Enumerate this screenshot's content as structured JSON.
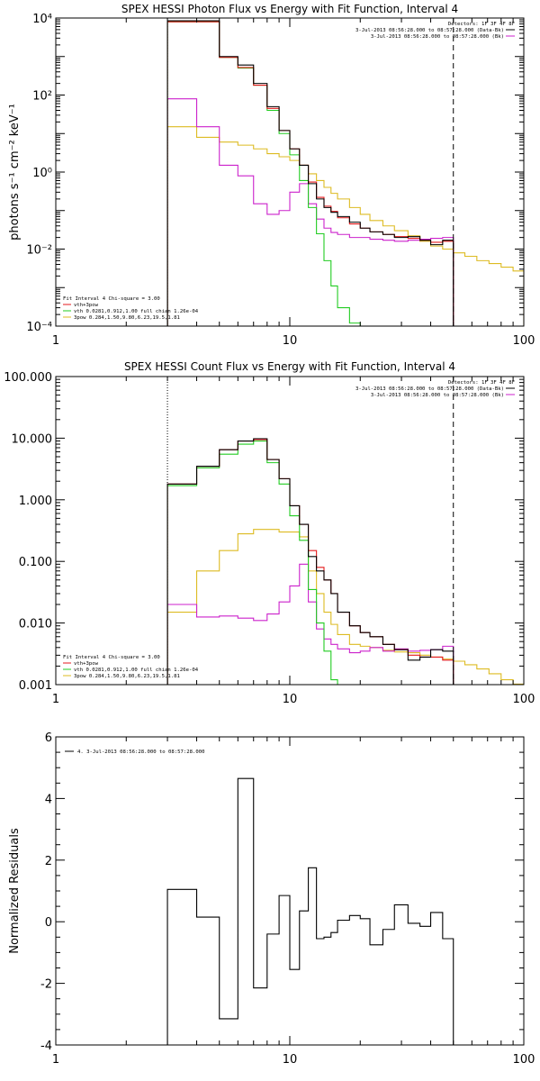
{
  "colors": {
    "black": "#000000",
    "red": "#e41a1c",
    "green": "#22cc22",
    "magenta": "#cc22cc",
    "yellow": "#ddbb22"
  },
  "chart_data": [
    {
      "type": "line",
      "title": "SPEX HESSI Photon Flux vs Energy with Fit Function, Interval 4",
      "xlabel": "",
      "ylabel": "photons s⁻¹ cm⁻² keV⁻¹",
      "xscale": "log",
      "yscale": "log",
      "xlim": [
        1,
        100
      ],
      "ylim": [
        0.0001,
        10000
      ],
      "x_ticks": [
        1,
        10,
        100
      ],
      "x_tick_labels": [
        "1",
        "10",
        "100"
      ],
      "y_ticks": [
        0.0001,
        0.01,
        1,
        100,
        10000
      ],
      "y_tick_labels": [
        "10⁻⁴",
        "10⁻²",
        "10⁰",
        "10²",
        "10⁴"
      ],
      "legend_top_right": [
        "Detectors: 1F 3F 4F 8F",
        "3-Jul-2013 08:56:28.000 to 08:57:28.000 (Data-Bk)",
        "3-Jul-2013 08:56:28.000 to 08:57:28.000 (Bk)"
      ],
      "legend_bottom_left": [
        "Fit Interval 4   Chi-square = 3.00",
        "vth+3pow",
        "vth 0.0281,0.912,1.00  full chian 1.26e-04",
        "3pow 0.284,1.50,9.80,6.23,19.5,1.81"
      ],
      "vlines": [
        {
          "x": 3,
          "style": "dotted"
        },
        {
          "x": 50,
          "style": "dashed"
        }
      ],
      "edges": [
        3.0,
        4.0,
        5.0,
        6.0,
        7.0,
        8.0,
        9.0,
        10.0,
        11.0,
        12.0,
        13.0,
        14.0,
        15.0,
        16.0,
        18.0,
        20.0,
        22.0,
        25.0,
        28.0,
        32.0,
        36.0,
        40.0,
        45.0,
        50.0,
        56.0,
        63.0,
        71.0,
        80.0,
        90.0,
        100.0
      ],
      "series": [
        {
          "name": "Data-Bk",
          "color": "black",
          "values": [
            8500,
            8500,
            1000,
            600,
            200,
            50,
            12,
            4,
            1.5,
            0.5,
            0.2,
            0.12,
            0.09,
            0.07,
            0.05,
            0.035,
            0.028,
            0.024,
            0.02,
            0.021,
            0.017,
            0.013,
            0.017
          ]
        },
        {
          "name": "vth+3pow",
          "color": "red",
          "values": [
            8000,
            8000,
            950,
            520,
            180,
            45,
            12,
            4,
            1.5,
            0.55,
            0.22,
            0.13,
            0.095,
            0.065,
            0.045,
            0.035,
            0.028,
            0.024,
            0.021,
            0.019,
            0.017,
            0.015,
            0.016
          ]
        },
        {
          "name": "vth",
          "color": "green",
          "values": [
            8000,
            8000,
            950,
            500,
            180,
            40,
            10,
            2.8,
            0.6,
            0.12,
            0.025,
            0.005,
            0.0011,
            0.0003,
            0.00012,
            9e-05
          ]
        },
        {
          "name": "Bk",
          "color": "magenta",
          "values": [
            80,
            15,
            1.5,
            0.8,
            0.15,
            0.08,
            0.1,
            0.3,
            0.5,
            0.15,
            0.06,
            0.035,
            0.027,
            0.024,
            0.02,
            0.02,
            0.018,
            0.017,
            0.016,
            0.017,
            0.018,
            0.019,
            0.02
          ]
        },
        {
          "name": "3pow",
          "color": "yellow",
          "values": [
            15,
            8,
            6,
            5,
            4,
            3,
            2.5,
            2,
            1.5,
            0.9,
            0.6,
            0.4,
            0.28,
            0.2,
            0.12,
            0.08,
            0.055,
            0.04,
            0.03,
            0.022,
            0.016,
            0.012,
            0.01,
            0.008,
            0.0065,
            0.005,
            0.0042,
            0.0034,
            0.0027
          ]
        }
      ]
    },
    {
      "type": "line",
      "title": "SPEX HESSI Count Flux vs Energy with Fit Function, Interval 4",
      "xlabel": "",
      "ylabel": "",
      "xscale": "log",
      "yscale": "log",
      "xlim": [
        1,
        100
      ],
      "ylim": [
        0.001,
        100
      ],
      "x_ticks": [
        1,
        10,
        100
      ],
      "x_tick_labels": [
        "1",
        "10",
        "100"
      ],
      "y_ticks": [
        0.001,
        0.01,
        0.1,
        1,
        10,
        100
      ],
      "y_tick_labels": [
        "0.001",
        "0.010",
        "0.100",
        "1.000",
        "10.000",
        "100.000"
      ],
      "legend_top_right": [
        "Detectors: 1F 3F 4F 8F",
        "3-Jul-2013 08:56:28.000 to 08:57:28.000 (Data-Bk)",
        "3-Jul-2013 08:56:28.000 to 08:57:28.000 (Bk)"
      ],
      "legend_bottom_left": [
        "Fit Interval 4   Chi-square = 3.00",
        "vth+3pow",
        "vth 0.0281,0.912,1.00  full chian 1.26e-04",
        "3pow 0.284,1.50,9.80,6.23,19.5,1.81"
      ],
      "vlines": [
        {
          "x": 3,
          "style": "dotted"
        },
        {
          "x": 50,
          "style": "dashed"
        }
      ],
      "edges": [
        3.0,
        4.0,
        5.0,
        6.0,
        7.0,
        8.0,
        9.0,
        10.0,
        11.0,
        12.0,
        13.0,
        14.0,
        15.0,
        16.0,
        18.0,
        20.0,
        22.0,
        25.0,
        28.0,
        32.0,
        36.0,
        40.0,
        45.0,
        50.0,
        56.0,
        63.0,
        71.0,
        80.0,
        90.0,
        100.0
      ],
      "series": [
        {
          "name": "Data-Bk",
          "color": "black",
          "values": [
            1.8,
            3.5,
            6.5,
            9.0,
            9.8,
            4.5,
            2.2,
            0.8,
            0.4,
            0.12,
            0.07,
            0.05,
            0.03,
            0.015,
            0.009,
            0.007,
            0.006,
            0.0045,
            0.0037,
            0.0025,
            0.0028,
            0.0037,
            0.0035
          ]
        },
        {
          "name": "vth+3pow",
          "color": "red",
          "values": [
            1.8,
            3.5,
            6.5,
            9.0,
            9.5,
            4.5,
            2.2,
            0.8,
            0.4,
            0.15,
            0.08,
            0.05,
            0.03,
            0.015,
            0.009,
            0.007,
            0.006,
            0.0045,
            0.0037,
            0.003,
            0.0028,
            0.0028,
            0.0025
          ]
        },
        {
          "name": "vth",
          "color": "green",
          "values": [
            1.7,
            3.3,
            5.5,
            8.0,
            9.0,
            4.0,
            1.8,
            0.55,
            0.22,
            0.035,
            0.01,
            0.0035,
            0.0012
          ]
        },
        {
          "name": "Bk",
          "color": "magenta",
          "values": [
            0.02,
            0.0125,
            0.013,
            0.012,
            0.011,
            0.014,
            0.022,
            0.04,
            0.09,
            0.022,
            0.008,
            0.0055,
            0.0045,
            0.0038,
            0.0033,
            0.0035,
            0.004,
            0.0035,
            0.0038,
            0.0035,
            0.0036,
            0.0037,
            0.0042
          ]
        },
        {
          "name": "3pow",
          "color": "yellow",
          "values": [
            0.015,
            0.07,
            0.15,
            0.28,
            0.33,
            0.33,
            0.3,
            0.3,
            0.25,
            0.07,
            0.03,
            0.015,
            0.0095,
            0.0065,
            0.0045,
            0.0042,
            0.004,
            0.0036,
            0.0034,
            0.0033,
            0.003,
            0.0028,
            0.0026,
            0.0024,
            0.0021,
            0.0018,
            0.0015,
            0.0012,
            0.00102
          ]
        }
      ]
    },
    {
      "type": "line",
      "title": "",
      "xlabel": "",
      "ylabel": "Normalized Residuals",
      "xscale": "log",
      "yscale": "linear",
      "xlim": [
        1,
        100
      ],
      "ylim": [
        -4,
        6
      ],
      "x_ticks": [
        1,
        10,
        100
      ],
      "x_tick_labels": [
        "1",
        "10",
        "100"
      ],
      "y_ticks": [
        -4,
        -2,
        0,
        2,
        4,
        6
      ],
      "y_tick_labels": [
        "-4",
        "-2",
        "0",
        "2",
        "4",
        "6"
      ],
      "legend_top_left": [
        "4. 3-Jul-2013 08:56:28.000 to 08:57:28.000"
      ],
      "edges": [
        3.0,
        4.0,
        5.0,
        6.0,
        7.0,
        8.0,
        9.0,
        10.0,
        11.0,
        12.0,
        13.0,
        14.0,
        15.0,
        16.0,
        18.0,
        20.0,
        22.0,
        25.0,
        28.0,
        32.0,
        36.0,
        40.0,
        45.0,
        50.0
      ],
      "series": [
        {
          "name": "4. 3-Jul-2013 08:56:28.000 to 08:57:28.000",
          "color": "black",
          "values": [
            1.05,
            0.15,
            -3.15,
            4.65,
            -2.15,
            -0.4,
            0.85,
            -1.55,
            0.35,
            1.75,
            -0.55,
            -0.5,
            -0.35,
            0.05,
            0.2,
            0.1,
            -0.75,
            -0.25,
            0.55,
            -0.05,
            -0.15,
            0.3,
            -0.55
          ]
        }
      ]
    }
  ]
}
